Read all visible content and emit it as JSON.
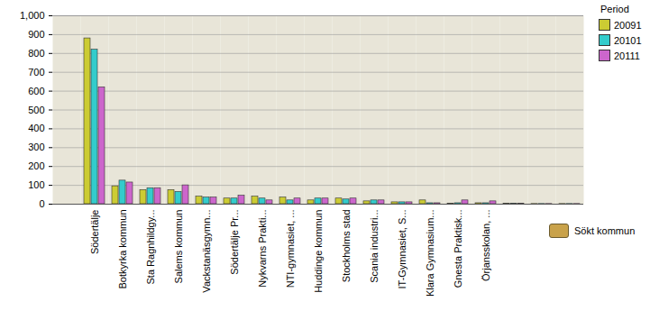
{
  "chart_data": {
    "type": "bar",
    "categories": [
      null,
      "Södertälje",
      "Botkyrka kommun",
      "Sta Ragnhildgy...",
      "Salems kommun",
      "Vackstanäsgymn...",
      "Södertälje Pr...",
      "Nykvarns Prakti...",
      "NTI-gymnasiet, ...",
      "Huddinge kommun",
      "Stockholms stad",
      "Scania industri...",
      "IT-Gymnasiet, S...",
      "Klara Gymnasium...",
      "Gnesta Praktisk...",
      "Örjansskolan, ...",
      null,
      null,
      null
    ],
    "series": [
      {
        "name": "20091",
        "color": "#cccc33",
        "values": [
          0,
          880,
          95,
          75,
          75,
          40,
          30,
          40,
          35,
          20,
          30,
          15,
          10,
          20,
          2,
          5,
          2,
          1,
          1
        ]
      },
      {
        "name": "20101",
        "color": "#33cccc",
        "values": [
          0,
          820,
          125,
          85,
          65,
          35,
          30,
          30,
          20,
          30,
          25,
          20,
          10,
          5,
          5,
          5,
          2,
          1,
          1
        ]
      },
      {
        "name": "20111",
        "color": "#cc66cc",
        "values": [
          0,
          620,
          115,
          85,
          100,
          35,
          45,
          20,
          30,
          30,
          30,
          20,
          10,
          5,
          20,
          15,
          2,
          1,
          1
        ]
      }
    ],
    "legend_title": "Period",
    "annotations": [
      "Sökt kommun"
    ],
    "ylim": [
      0,
      1000
    ],
    "yticks": [
      0,
      100,
      200,
      300,
      400,
      500,
      600,
      700,
      800,
      900,
      1000
    ],
    "grid": true,
    "legend": "right"
  }
}
